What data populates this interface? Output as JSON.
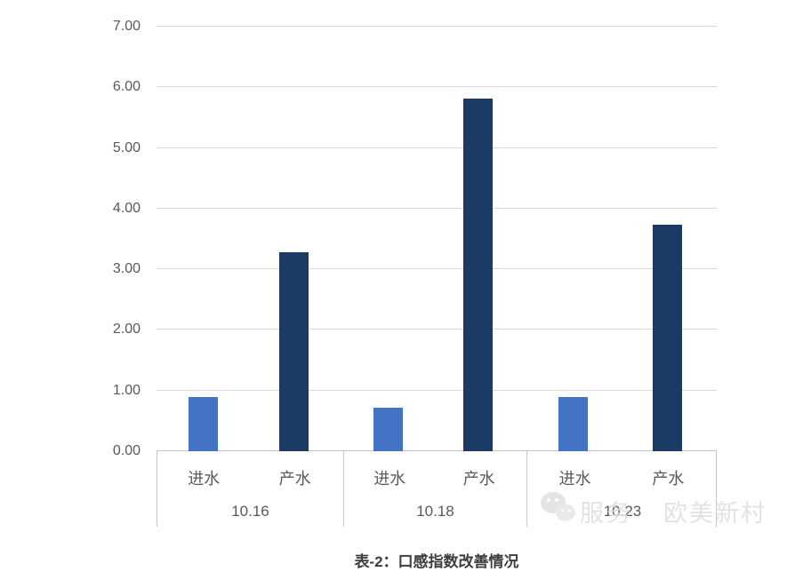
{
  "chart_data": {
    "type": "bar",
    "title": "表-2：口感指数改善情况",
    "categories": [
      "10.16",
      "10.18",
      "10.23"
    ],
    "sub_categories": [
      "进水",
      "产水"
    ],
    "series": [
      {
        "name": "进水",
        "color": "#4472C4",
        "values": [
          0.9,
          0.72,
          0.9
        ]
      },
      {
        "name": "产水",
        "color": "#1B3A64",
        "values": [
          3.28,
          5.81,
          3.73
        ]
      }
    ],
    "ylim": [
      0,
      7
    ],
    "ytick_step": 1,
    "ytick_labels": [
      "0.00",
      "1.00",
      "2.00",
      "3.00",
      "4.00",
      "5.00",
      "6.00",
      "7.00"
    ],
    "grid": true,
    "legend_position": "none",
    "xlabel": "",
    "ylabel": ""
  },
  "caption": "表-2：口感指数改善情况",
  "watermark": {
    "icon": "wechat-icon",
    "text_left": "服务",
    "text_right": "欧美新村"
  },
  "colors": {
    "bar_light_blue": "#4472C4",
    "bar_dark_navy": "#1B3A64",
    "gridline": "#d9d9d9",
    "axis_box_border": "#c3c3c3",
    "axis_text": "#595959",
    "caption_text": "#3d3d3d",
    "background": "#ffffff"
  }
}
